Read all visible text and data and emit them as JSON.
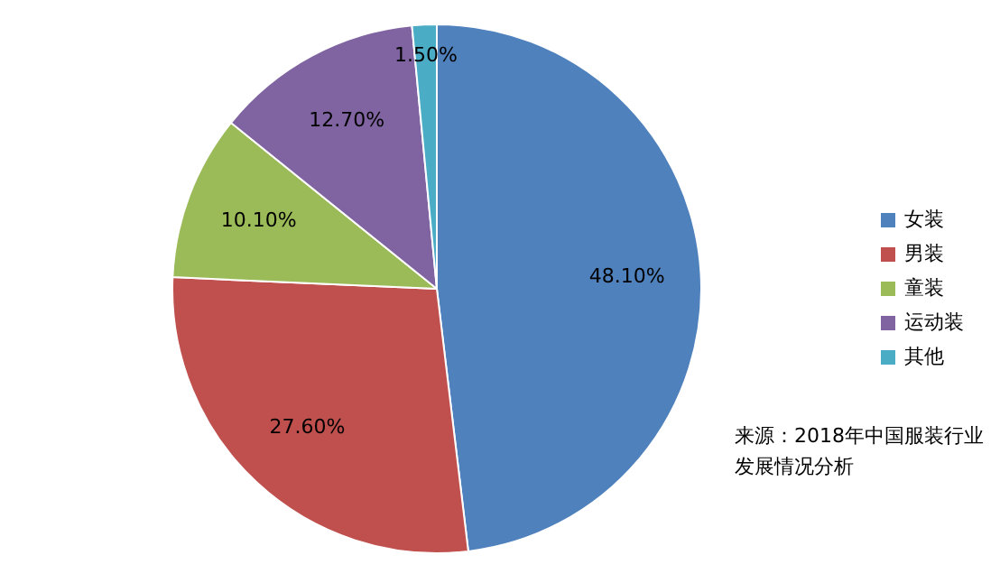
{
  "chart_data": {
    "type": "pie",
    "categories": [
      "女装",
      "男装",
      "童装",
      "运动装",
      "其他"
    ],
    "values": [
      48.1,
      27.6,
      10.1,
      12.7,
      1.5
    ],
    "colors": [
      "#4f81bd",
      "#c0504d",
      "#9bbb59",
      "#8064a2",
      "#4bacc6"
    ],
    "value_labels": [
      "48.10%",
      "27.60%",
      "10.10%",
      "12.70%",
      "1.50%"
    ],
    "legend": "right",
    "annotations": [
      "来源：2018年中国服装行业发展情况分析"
    ]
  }
}
